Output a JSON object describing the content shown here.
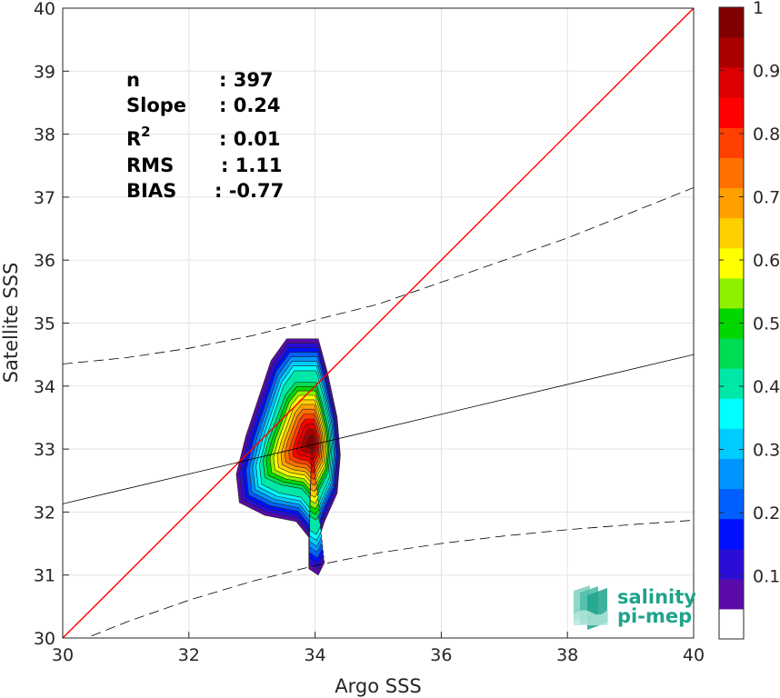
{
  "chart_data": {
    "type": "scatter-density",
    "xlabel": "Argo SSS",
    "ylabel": "Satellite SSS",
    "xlim": [
      30,
      40
    ],
    "ylim": [
      30,
      40
    ],
    "xticks": [
      "30",
      "32",
      "34",
      "36",
      "38",
      "40"
    ],
    "yticks": [
      "30",
      "31",
      "32",
      "33",
      "34",
      "35",
      "36",
      "37",
      "38",
      "39",
      "40"
    ],
    "grid": true,
    "identity_line": {
      "from": [
        30,
        30
      ],
      "to": [
        40,
        40
      ],
      "color": "#ff0000"
    },
    "regression_line": {
      "from": [
        30,
        32.13
      ],
      "to": [
        40,
        34.5
      ],
      "color": "#000000"
    },
    "upper_envelope": {
      "x": [
        30,
        31,
        32,
        33,
        34,
        35,
        36,
        37,
        38,
        39,
        40
      ],
      "y": [
        34.35,
        34.45,
        34.6,
        34.8,
        35.05,
        35.3,
        35.65,
        36.0,
        36.35,
        36.75,
        37.15
      ]
    },
    "lower_envelope": {
      "x": [
        30,
        31,
        32,
        33,
        34,
        35,
        36,
        37,
        38,
        39,
        40
      ],
      "y": [
        29.85,
        30.25,
        30.6,
        30.9,
        31.15,
        31.35,
        31.5,
        31.62,
        31.72,
        31.8,
        31.87
      ]
    },
    "density_peak": {
      "x": 33.95,
      "y": 33.1
    },
    "stats": [
      {
        "label": "n",
        "value": ": 397"
      },
      {
        "label": "Slope",
        "value": ": 0.24"
      },
      {
        "label": "R",
        "sup": "2",
        "value": ": 0.01"
      },
      {
        "label": "RMS",
        "value": ": 1.11"
      },
      {
        "label": "BIAS",
        "value": ": -0.77"
      }
    ],
    "colorbar": {
      "ticks": [
        "0.1",
        "0.2",
        "0.3",
        "0.4",
        "0.5",
        "0.6",
        "0.7",
        "0.8",
        "0.9",
        "1"
      ],
      "colors": [
        "#ffffff",
        "#5a0aa8",
        "#2a0ed8",
        "#0010ff",
        "#0060ff",
        "#0095ff",
        "#00ccff",
        "#00ffff",
        "#00e8a8",
        "#00dd55",
        "#00d800",
        "#8ff000",
        "#ffff00",
        "#ffd000",
        "#ffa000",
        "#ff7000",
        "#ff4000",
        "#ff0000",
        "#dd0000",
        "#aa0000",
        "#800000"
      ]
    }
  },
  "logo": {
    "line1": "salinity",
    "line2": "pi-mep"
  }
}
